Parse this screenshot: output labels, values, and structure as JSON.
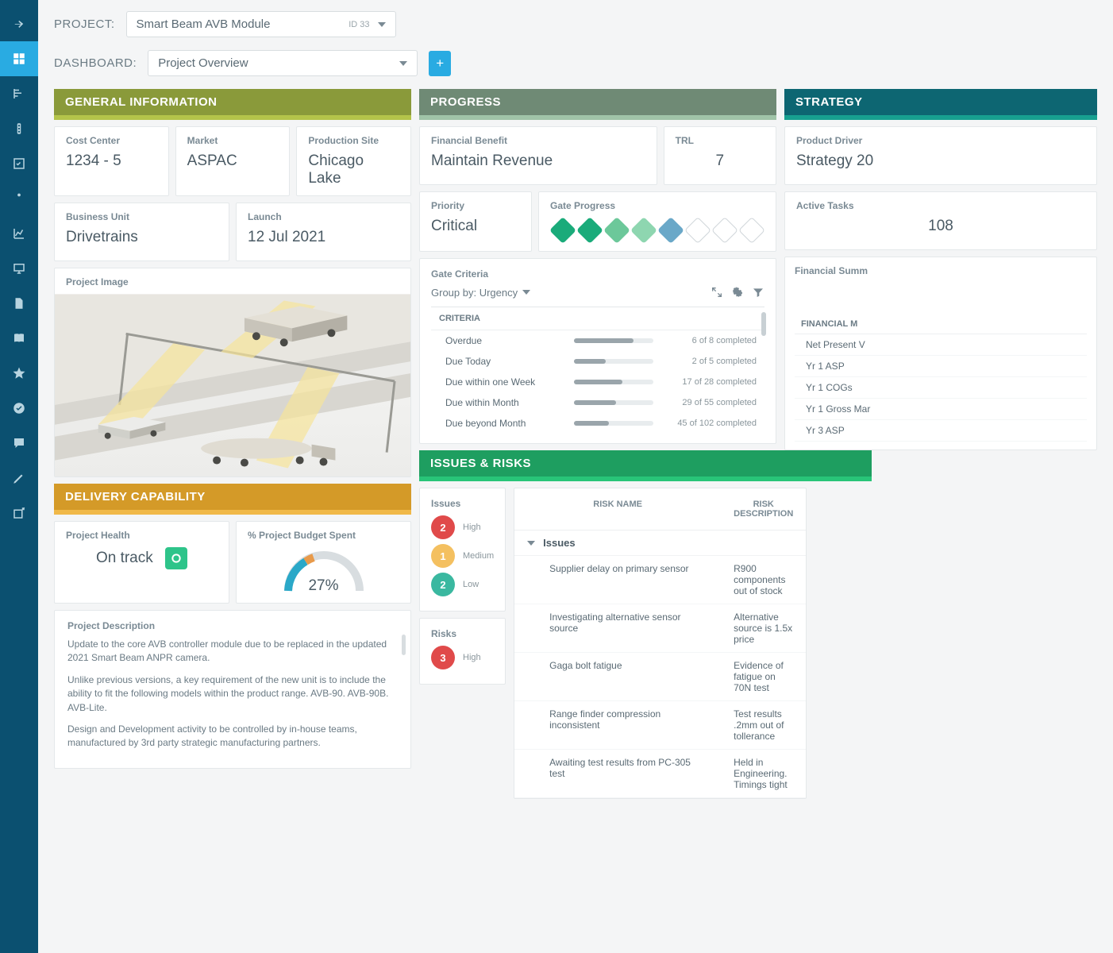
{
  "colors": {
    "sidebar": "#0b5070",
    "active": "#29abe2",
    "general": "#8a9a3a",
    "progress": "#6f8a75",
    "strategy": "#0d6672",
    "delivery": "#d49a28",
    "issues": "#1e9e60"
  },
  "project": {
    "label": "PROJECT:",
    "name": "Smart Beam AVB Module",
    "id_tag": "ID 33"
  },
  "dashboard": {
    "label": "DASHBOARD:",
    "name": "Project Overview"
  },
  "sections": {
    "general": "GENERAL INFORMATION",
    "progress": "PROGRESS",
    "strategy": "STRATEGY",
    "delivery": "DELIVERY CAPABILITY",
    "issues": "ISSUES & RISKS"
  },
  "general": {
    "cost_center": {
      "label": "Cost Center",
      "value": "1234 - 5"
    },
    "market": {
      "label": "Market",
      "value": "ASPAC"
    },
    "production_site": {
      "label": "Production Site",
      "value": "Chicago Lake"
    },
    "business_unit": {
      "label": "Business Unit",
      "value": "Drivetrains"
    },
    "launch": {
      "label": "Launch",
      "value": "12 Jul 2021"
    },
    "project_image_label": "Project Image"
  },
  "progress": {
    "financial_benefit": {
      "label": "Financial Benefit",
      "value": "Maintain Revenue"
    },
    "trl": {
      "label": "TRL",
      "value": "7"
    },
    "priority": {
      "label": "Priority",
      "value": "Critical"
    },
    "gate_progress": {
      "label": "Gate Progress",
      "diamonds": [
        "d-green",
        "d-green",
        "d-lgreen",
        "d-llgreen",
        "d-blue",
        "d-empty",
        "d-empty",
        "d-empty"
      ]
    },
    "gate_criteria": {
      "label": "Gate Criteria",
      "groupby": "Group by: Urgency",
      "header": "CRITERIA",
      "rows": [
        {
          "name": "Overdue",
          "done": 6,
          "total": 8,
          "pct": 75
        },
        {
          "name": "Due Today",
          "done": 2,
          "total": 5,
          "pct": 40
        },
        {
          "name": "Due within one Week",
          "done": 17,
          "total": 28,
          "pct": 61
        },
        {
          "name": "Due within Month",
          "done": 29,
          "total": 55,
          "pct": 53
        },
        {
          "name": "Due beyond Month",
          "done": 45,
          "total": 102,
          "pct": 44
        }
      ]
    }
  },
  "strategy": {
    "product_driver": {
      "label": "Product Driver",
      "value": "Strategy 20"
    },
    "active_tasks": {
      "label": "Active Tasks",
      "value": "108"
    },
    "financial_summary": {
      "label": "Financial Summ",
      "header": "FINANCIAL M",
      "rows": [
        "Net Present V",
        "Yr 1 ASP",
        "Yr 1 COGs",
        "Yr 1 Gross Mar",
        "Yr 3 ASP"
      ]
    }
  },
  "delivery": {
    "project_health": {
      "label": "Project Health",
      "value": "On track"
    },
    "budget": {
      "label": "% Project Budget Spent",
      "value": "27%",
      "pct": 27
    },
    "description": {
      "label": "Project Description",
      "p1": "Update to the core AVB controller module due to be replaced in the updated 2021 Smart Beam ANPR camera.",
      "p2": "Unlike previous versions, a key requirement of the new unit is to include the ability to fit the following models within the product range. AVB-90. AVB-90B. AVB-Lite.",
      "p3": "Design and Development activity to be controlled by in-house teams, manufactured by 3rd party strategic manufacturing partners."
    }
  },
  "issues": {
    "issues_label": "Issues",
    "risks_label": "Risks",
    "issue_counts": [
      {
        "n": "2",
        "label": "High",
        "cls": "cc-red"
      },
      {
        "n": "1",
        "label": "Medium",
        "cls": "cc-yellow"
      },
      {
        "n": "2",
        "label": "Low",
        "cls": "cc-teal"
      }
    ],
    "risk_counts": [
      {
        "n": "3",
        "label": "High",
        "cls": "cc-red"
      }
    ],
    "table": {
      "col_name": "RISK NAME",
      "col_desc": "RISK DESCRIPTION",
      "group": "Issues",
      "rows": [
        {
          "name": "Supplier delay on primary sensor",
          "desc": "R900 components out of stock"
        },
        {
          "name": "Investigating alternative sensor source",
          "desc": "Alternative source is 1.5x price"
        },
        {
          "name": "Gaga bolt fatigue",
          "desc": "Evidence of fatigue on 70N test"
        },
        {
          "name": "Range finder compression inconsistent",
          "desc": "Test results .2mm out of tollerance"
        },
        {
          "name": "Awaiting test results from PC-305 test",
          "desc": "Held in Engineering. Timings tight"
        }
      ]
    }
  }
}
